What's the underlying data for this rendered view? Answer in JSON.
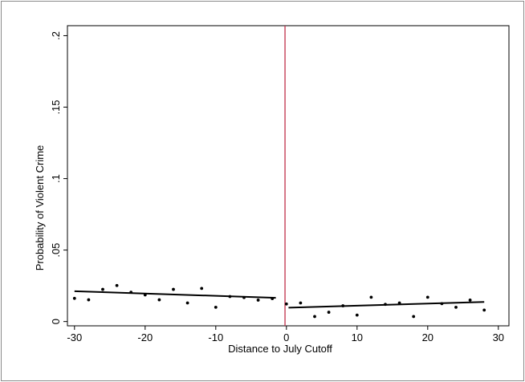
{
  "chart_data": {
    "type": "scatter",
    "title": "",
    "xlabel": "Distance to July Cutoff",
    "ylabel": "Probability of Violent Crime",
    "xlim": [
      -31,
      31.5
    ],
    "ylim": [
      -0.003,
      0.207
    ],
    "xticks": [
      -30,
      -20,
      -10,
      0,
      10,
      20,
      30
    ],
    "xtick_labels": [
      "-30",
      "-20",
      "-10",
      "0",
      "10",
      "20",
      "30"
    ],
    "yticks": [
      0,
      0.05,
      0.1,
      0.15,
      0.2
    ],
    "ytick_labels": [
      "0",
      ".05",
      ".1",
      ".15",
      ".2"
    ],
    "grid": false,
    "cutoff_line": {
      "x": -0.2,
      "color": "#c0304a"
    },
    "series": [
      {
        "marker": "dot",
        "color": "#000000",
        "points": [
          {
            "x": -30,
            "y": 0.0162
          },
          {
            "x": -28,
            "y": 0.0152
          },
          {
            "x": -26,
            "y": 0.0225
          },
          {
            "x": -24,
            "y": 0.0252
          },
          {
            "x": -22,
            "y": 0.0205
          },
          {
            "x": -20,
            "y": 0.0186
          },
          {
            "x": -18,
            "y": 0.0152
          },
          {
            "x": -16,
            "y": 0.0225
          },
          {
            "x": -14,
            "y": 0.013
          },
          {
            "x": -12,
            "y": 0.0232
          },
          {
            "x": -10,
            "y": 0.01
          },
          {
            "x": -8,
            "y": 0.0175
          },
          {
            "x": -6,
            "y": 0.0168
          },
          {
            "x": -4,
            "y": 0.015
          },
          {
            "x": -2,
            "y": 0.016
          },
          {
            "x": 0,
            "y": 0.0123
          },
          {
            "x": 2,
            "y": 0.013
          },
          {
            "x": 4,
            "y": 0.0035
          },
          {
            "x": 6,
            "y": 0.0065
          },
          {
            "x": 8,
            "y": 0.011
          },
          {
            "x": 10,
            "y": 0.0045
          },
          {
            "x": 12,
            "y": 0.017
          },
          {
            "x": 14,
            "y": 0.012
          },
          {
            "x": 16,
            "y": 0.013
          },
          {
            "x": 18,
            "y": 0.0035
          },
          {
            "x": 20,
            "y": 0.017
          },
          {
            "x": 22,
            "y": 0.0125
          },
          {
            "x": 24,
            "y": 0.01
          },
          {
            "x": 26,
            "y": 0.015
          },
          {
            "x": 28,
            "y": 0.008
          }
        ]
      }
    ],
    "fit_lines": [
      {
        "x": [
          -30,
          -1.5
        ],
        "y": [
          0.0212,
          0.0166
        ],
        "color": "#000000"
      },
      {
        "x": [
          0.3,
          28
        ],
        "y": [
          0.0097,
          0.0137
        ],
        "color": "#000000"
      }
    ]
  }
}
